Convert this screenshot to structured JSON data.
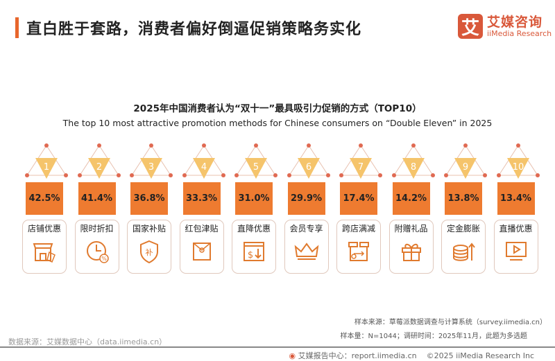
{
  "header": {
    "title": "直白胜于套路，消费者偏好倒逼促销策略务实化"
  },
  "logo": {
    "mark": "艾",
    "cn": "艾媒咨询",
    "en": "iiMedia Research"
  },
  "colors": {
    "accent": "#ee7b30",
    "brand": "#d9583a",
    "triangle": "#f5c46b"
  },
  "chart_data": {
    "type": "bar",
    "title": "2025年中国消费者认为“双十一”最具吸引力促销的方式（TOP10）",
    "subtitle": "The top 10 most attractive promotion methods for Chinese consumers on “Double Eleven” in 2025",
    "ranks": [
      "1",
      "2",
      "3",
      "4",
      "5",
      "6",
      "7",
      "8",
      "9",
      "10"
    ],
    "categories": [
      "店铺优惠",
      "限时折扣",
      "国家补贴",
      "红包津贴",
      "直降优惠",
      "会员专享",
      "跨店满减",
      "附赠礼品",
      "定金膨胀",
      "直播优惠"
    ],
    "values": [
      42.5,
      41.4,
      36.8,
      33.3,
      31.0,
      29.9,
      17.4,
      14.2,
      13.8,
      13.4
    ],
    "value_labels": [
      "42.5%",
      "41.4%",
      "36.8%",
      "33.3%",
      "31.0%",
      "29.9%",
      "17.4%",
      "14.2%",
      "13.8%",
      "13.4%"
    ],
    "icons": [
      "shop-icon",
      "clock-discount-icon",
      "shield-subsidy-icon",
      "red-envelope-icon",
      "price-down-icon",
      "crown-icon",
      "stores-icon",
      "gift-icon",
      "coins-up-icon",
      "live-video-icon"
    ]
  },
  "footer": {
    "source_left": "数据来源：艾媒数据中心（data.iimedia.cn）",
    "sample_source": "样本来源：草莓派数据调查与计算系统（survey.iimedia.cn）",
    "sample_info": "样本量：N=1044；调研时间：2025年11月，此题为多选题",
    "report": "艾媒报告中心：report.iimedia.cn",
    "copyright": "©2025  iiMedia Research  Inc"
  }
}
